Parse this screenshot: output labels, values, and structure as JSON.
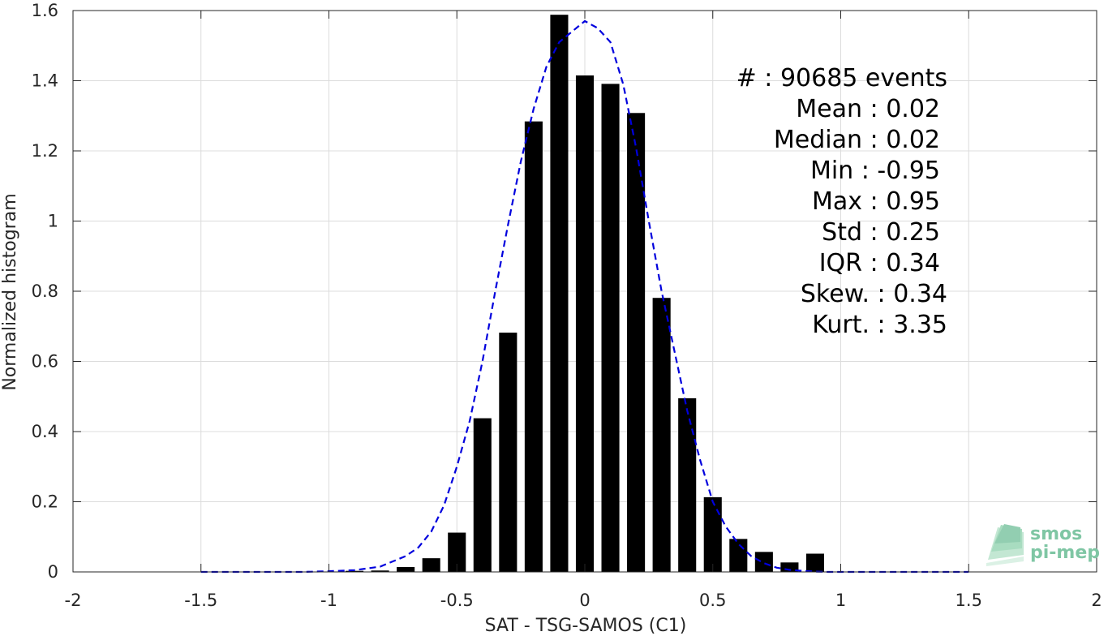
{
  "chart_data": {
    "type": "bar",
    "title": "",
    "xlabel": "SAT - TSG-SAMOS (C1)",
    "ylabel": "Normalized histogram",
    "xlim": [
      -2,
      2
    ],
    "ylim": [
      0,
      1.6
    ],
    "xticks": [
      -2,
      -1.5,
      -1,
      -0.5,
      0,
      0.5,
      1,
      1.5,
      2
    ],
    "xtick_labels": [
      "-2",
      "-1.5",
      "-1",
      "-0.5",
      "0",
      "0.5",
      "1",
      "1.5",
      "2"
    ],
    "yticks": [
      0,
      0.2,
      0.4,
      0.6,
      0.8,
      1,
      1.2,
      1.4,
      1.6
    ],
    "ytick_labels": [
      "0",
      "0.2",
      "0.4",
      "0.6",
      "0.8",
      "1",
      "1.2",
      "1.4",
      "1.6"
    ],
    "grid": true,
    "series": [
      {
        "type": "bar",
        "color": "#000000",
        "x": [
          -0.9,
          -0.8,
          -0.7,
          -0.6,
          -0.5,
          -0.4,
          -0.3,
          -0.2,
          -0.1,
          0.0,
          0.1,
          0.2,
          0.3,
          0.4,
          0.5,
          0.6,
          0.7,
          0.8,
          0.9
        ],
        "values": [
          0.003,
          0.004,
          0.014,
          0.039,
          0.112,
          0.438,
          0.682,
          1.284,
          1.588,
          1.415,
          1.391,
          1.308,
          0.781,
          0.495,
          0.213,
          0.094,
          0.057,
          0.027,
          0.052
        ]
      },
      {
        "type": "line",
        "style": "dashed",
        "color": "#0000dd",
        "x": [
          -1.5,
          -1.4,
          -1.3,
          -1.2,
          -1.1,
          -1.0,
          -0.9,
          -0.8,
          -0.75,
          -0.7,
          -0.65,
          -0.6,
          -0.55,
          -0.5,
          -0.45,
          -0.4,
          -0.35,
          -0.3,
          -0.25,
          -0.2,
          -0.15,
          -0.1,
          -0.05,
          0.0,
          0.05,
          0.1,
          0.15,
          0.2,
          0.25,
          0.3,
          0.35,
          0.4,
          0.45,
          0.5,
          0.55,
          0.6,
          0.65,
          0.7,
          0.75,
          0.8,
          0.85,
          0.9,
          0.95,
          1.0,
          1.1,
          1.2,
          1.3,
          1.4,
          1.5
        ],
        "values": [
          0,
          0,
          0,
          0,
          0,
          0.002,
          0.005,
          0.015,
          0.03,
          0.045,
          0.07,
          0.115,
          0.19,
          0.3,
          0.43,
          0.6,
          0.8,
          0.99,
          1.17,
          1.32,
          1.44,
          1.51,
          1.54,
          1.57,
          1.55,
          1.51,
          1.39,
          1.21,
          1.0,
          0.8,
          0.63,
          0.46,
          0.32,
          0.2,
          0.13,
          0.08,
          0.045,
          0.025,
          0.012,
          0.006,
          0.003,
          0.001,
          0,
          0,
          0,
          0,
          0,
          0,
          0
        ]
      }
    ],
    "annotations": [
      "#  : 90685 events",
      "Mean : 0.02",
      "Median : 0.02",
      "Min : -0.95",
      "Max : 0.95",
      "Std : 0.25",
      "IQR : 0.34",
      "Skew. : 0.34",
      "Kurt. : 3.35"
    ],
    "logo": {
      "line1": "smos",
      "line2": "pi-mep"
    }
  }
}
